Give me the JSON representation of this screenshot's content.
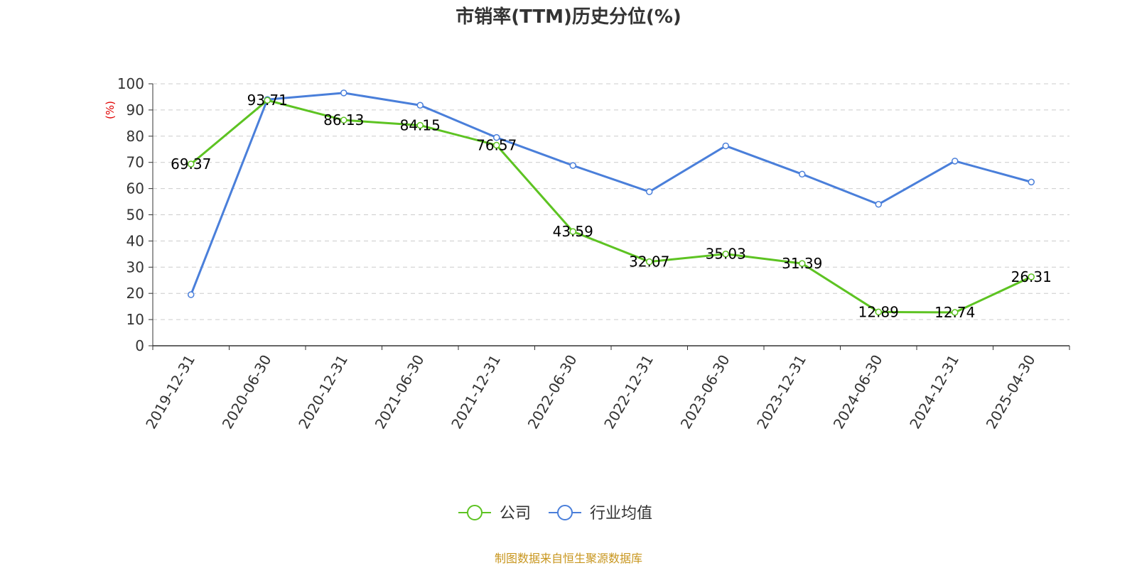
{
  "chart_data": {
    "type": "line",
    "title": "市销率(TTM)历史分位(%)",
    "ylabel": "(%)",
    "ylim": [
      0,
      100
    ],
    "yticks": [
      0,
      10,
      20,
      30,
      40,
      50,
      60,
      70,
      80,
      90,
      100
    ],
    "grid": true,
    "legend_position": "bottom",
    "categories": [
      "2019-12-31",
      "2020-06-30",
      "2020-12-31",
      "2021-06-30",
      "2021-12-31",
      "2022-06-30",
      "2022-12-31",
      "2023-06-30",
      "2023-12-31",
      "2024-06-30",
      "2024-12-31",
      "2025-04-30"
    ],
    "series": [
      {
        "name": "公司",
        "color": "#5dc322",
        "values": [
          69.37,
          93.71,
          86.13,
          84.15,
          76.57,
          43.59,
          32.07,
          35.03,
          31.39,
          12.89,
          12.74,
          26.31
        ],
        "data_labels": [
          "69.37",
          "93.71",
          "86.13",
          "84.15",
          "76.57",
          "43.59",
          "32.07",
          "35.03",
          "31.39",
          "12.89",
          "12.74",
          "26.31"
        ]
      },
      {
        "name": "行业均值",
        "color": "#4a7fda",
        "values": [
          19.5,
          94.0,
          96.5,
          91.8,
          79.5,
          68.8,
          58.8,
          76.3,
          65.5,
          54.0,
          70.5,
          62.5
        ]
      }
    ],
    "source": "制图数据来自恒生聚源数据库",
    "source_color": "#c8961e",
    "unit_color": "#e00000"
  }
}
